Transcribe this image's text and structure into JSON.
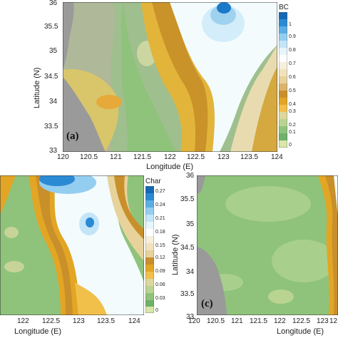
{
  "panels": {
    "a": {
      "tag": "(a)",
      "xlabel": "Longitude (E)",
      "ylabel": "Latitude (N)",
      "xticks": [
        "120",
        "120.5",
        "121",
        "121.5",
        "122",
        "122.5",
        "123",
        "123.5",
        "124"
      ],
      "yticks": [
        "36",
        "35.5",
        "35",
        "34.5",
        "34",
        "33.5",
        "33"
      ],
      "colorbar": {
        "title": "BC",
        "labels": [
          "1",
          "0.9",
          "0.8",
          "0.7",
          "0.6",
          "0.5",
          "0.4",
          "0.3",
          "0.2",
          "0.1",
          "0"
        ]
      }
    },
    "b": {
      "xlabel": "Longitude (E)",
      "xticks": [
        "122",
        "122.5",
        "123",
        "123.5",
        "124"
      ],
      "colorbar": {
        "title": "Char",
        "labels": [
          "0.27",
          "0.24",
          "0.21",
          "0.18",
          "0.15",
          "0.12",
          "0.09",
          "0.06",
          "0.03",
          "0"
        ]
      }
    },
    "c": {
      "tag": "(c)",
      "xlabel": "Longitude (E)",
      "ylabel": "Latitude (N)",
      "xticks": [
        "120",
        "120.5",
        "121",
        "121.5",
        "122",
        "122.5",
        "123",
        "12"
      ],
      "yticks": [
        "36",
        "35.5",
        "35",
        "34.5",
        "34",
        "33.5",
        "33"
      ]
    }
  },
  "colors": {
    "land": "#9a9a9a",
    "low": "#7fbf6e",
    "mid": "#e3b43a",
    "high": "#ffffff",
    "peak": "#1a79c8"
  }
}
